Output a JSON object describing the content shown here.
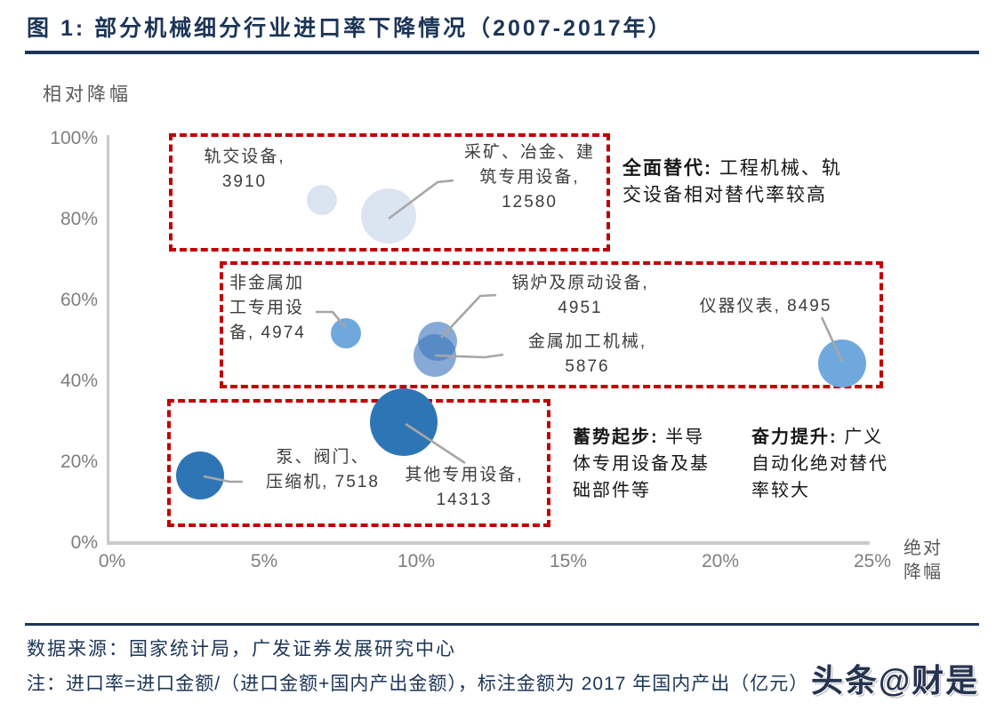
{
  "header": {
    "title": "图 1:  部分机械细分行业进口率下降情况（2007-2017年）"
  },
  "footer": {
    "source": "数据来源：国家统计局，广发证券发展研究中心",
    "note": "注：进口率=进口金额/（进口金额+国内产出金额），标注金额为 2017 年国内产出（亿元）",
    "watermark": "头条@财是"
  },
  "colors": {
    "navy": "#1c3557",
    "dashed_red": "#c00000",
    "light_blue": "#dbe5f2",
    "medium_blue": "#6fa8dc",
    "medium_blue_translucent": "rgba(59,118,188,0.62)",
    "dark_blue": "#2e75b6",
    "leader_gray": "#a6a6a6",
    "axis_gray": "#c9c9c9",
    "tick_gray": "#7f7f7f"
  },
  "chart_data": {
    "type": "scatter",
    "title": "部分机械细分行业进口率下降情况（2007-2017年）",
    "xlabel": "绝对降幅",
    "ylabel": "相对降幅",
    "xlim": [
      0,
      25
    ],
    "ylim": [
      0,
      100
    ],
    "grid": false,
    "legend_position": "none",
    "x_ticks": [
      "0%",
      "5%",
      "10%",
      "15%",
      "20%",
      "25%"
    ],
    "y_ticks": [
      "0%",
      "20%",
      "40%",
      "60%",
      "80%",
      "100%"
    ],
    "x_axis_label_lines": [
      "绝对",
      "降幅"
    ],
    "y_axis_label": "相对降幅",
    "points": [
      {
        "id": "rail-transit",
        "name": "轨交设备",
        "value": 3910,
        "x": 6.9,
        "y": 85,
        "label_lines": [
          "轨交设备,",
          "3910"
        ],
        "color": "light_blue"
      },
      {
        "id": "mining-metallurgy-construction",
        "name": "采矿、冶金、建筑专用设备",
        "value": 12580,
        "x": 9.1,
        "y": 81,
        "label_lines": [
          "采矿、冶金、建",
          "筑专用设备,",
          "12580"
        ],
        "color": "light_blue"
      },
      {
        "id": "nonmetal-processing",
        "name": "非金属加工专用设备",
        "value": 4974,
        "x": 7.7,
        "y": 52,
        "label_lines": [
          "非金属加",
          "工专用设",
          "备, 4974"
        ],
        "color": "medium_blue"
      },
      {
        "id": "boiler-prime-mover",
        "name": "锅炉及原动设备",
        "value": 4951,
        "x": 10.7,
        "y": 50,
        "label_lines": [
          "锅炉及原动设备,",
          "4951"
        ],
        "color": "medium_blue_translucent"
      },
      {
        "id": "metal-working",
        "name": "金属加工机械",
        "value": 5876,
        "x": 10.6,
        "y": 46.5,
        "label_lines": [
          "金属加工机械,",
          "5876"
        ],
        "color": "medium_blue_translucent"
      },
      {
        "id": "instruments",
        "name": "仪器仪表",
        "value": 8495,
        "x": 24,
        "y": 44.5,
        "label_lines": [
          "仪器仪表, 8495"
        ],
        "color": "medium_blue"
      },
      {
        "id": "pump-valve-compressor",
        "name": "泵、阀门、压缩机",
        "value": 7518,
        "x": 2.9,
        "y": 17,
        "label_lines": [
          "泵、阀门、",
          "压缩机, 7518"
        ],
        "color": "dark_blue"
      },
      {
        "id": "other-special-equipment",
        "name": "其他专用设备",
        "value": 14313,
        "x": 9.6,
        "y": 30,
        "label_lines": [
          "其他专用设备,",
          "14313"
        ],
        "color": "dark_blue"
      }
    ],
    "annotations": [
      {
        "id": "full-replacement",
        "head": "全面替代:",
        "rest_lines": [
          " 工程机械、轨",
          "交设备相对替代率较高"
        ]
      },
      {
        "id": "gaining-momentum",
        "head": "蓄势起步:",
        "rest_lines": [
          " 半导",
          "体专用设备及基",
          "础部件等"
        ]
      },
      {
        "id": "striving-to-improve",
        "head": "奋力提升:",
        "rest_lines": [
          " 广义",
          "自动化绝对替代",
          "率较大"
        ]
      }
    ]
  }
}
